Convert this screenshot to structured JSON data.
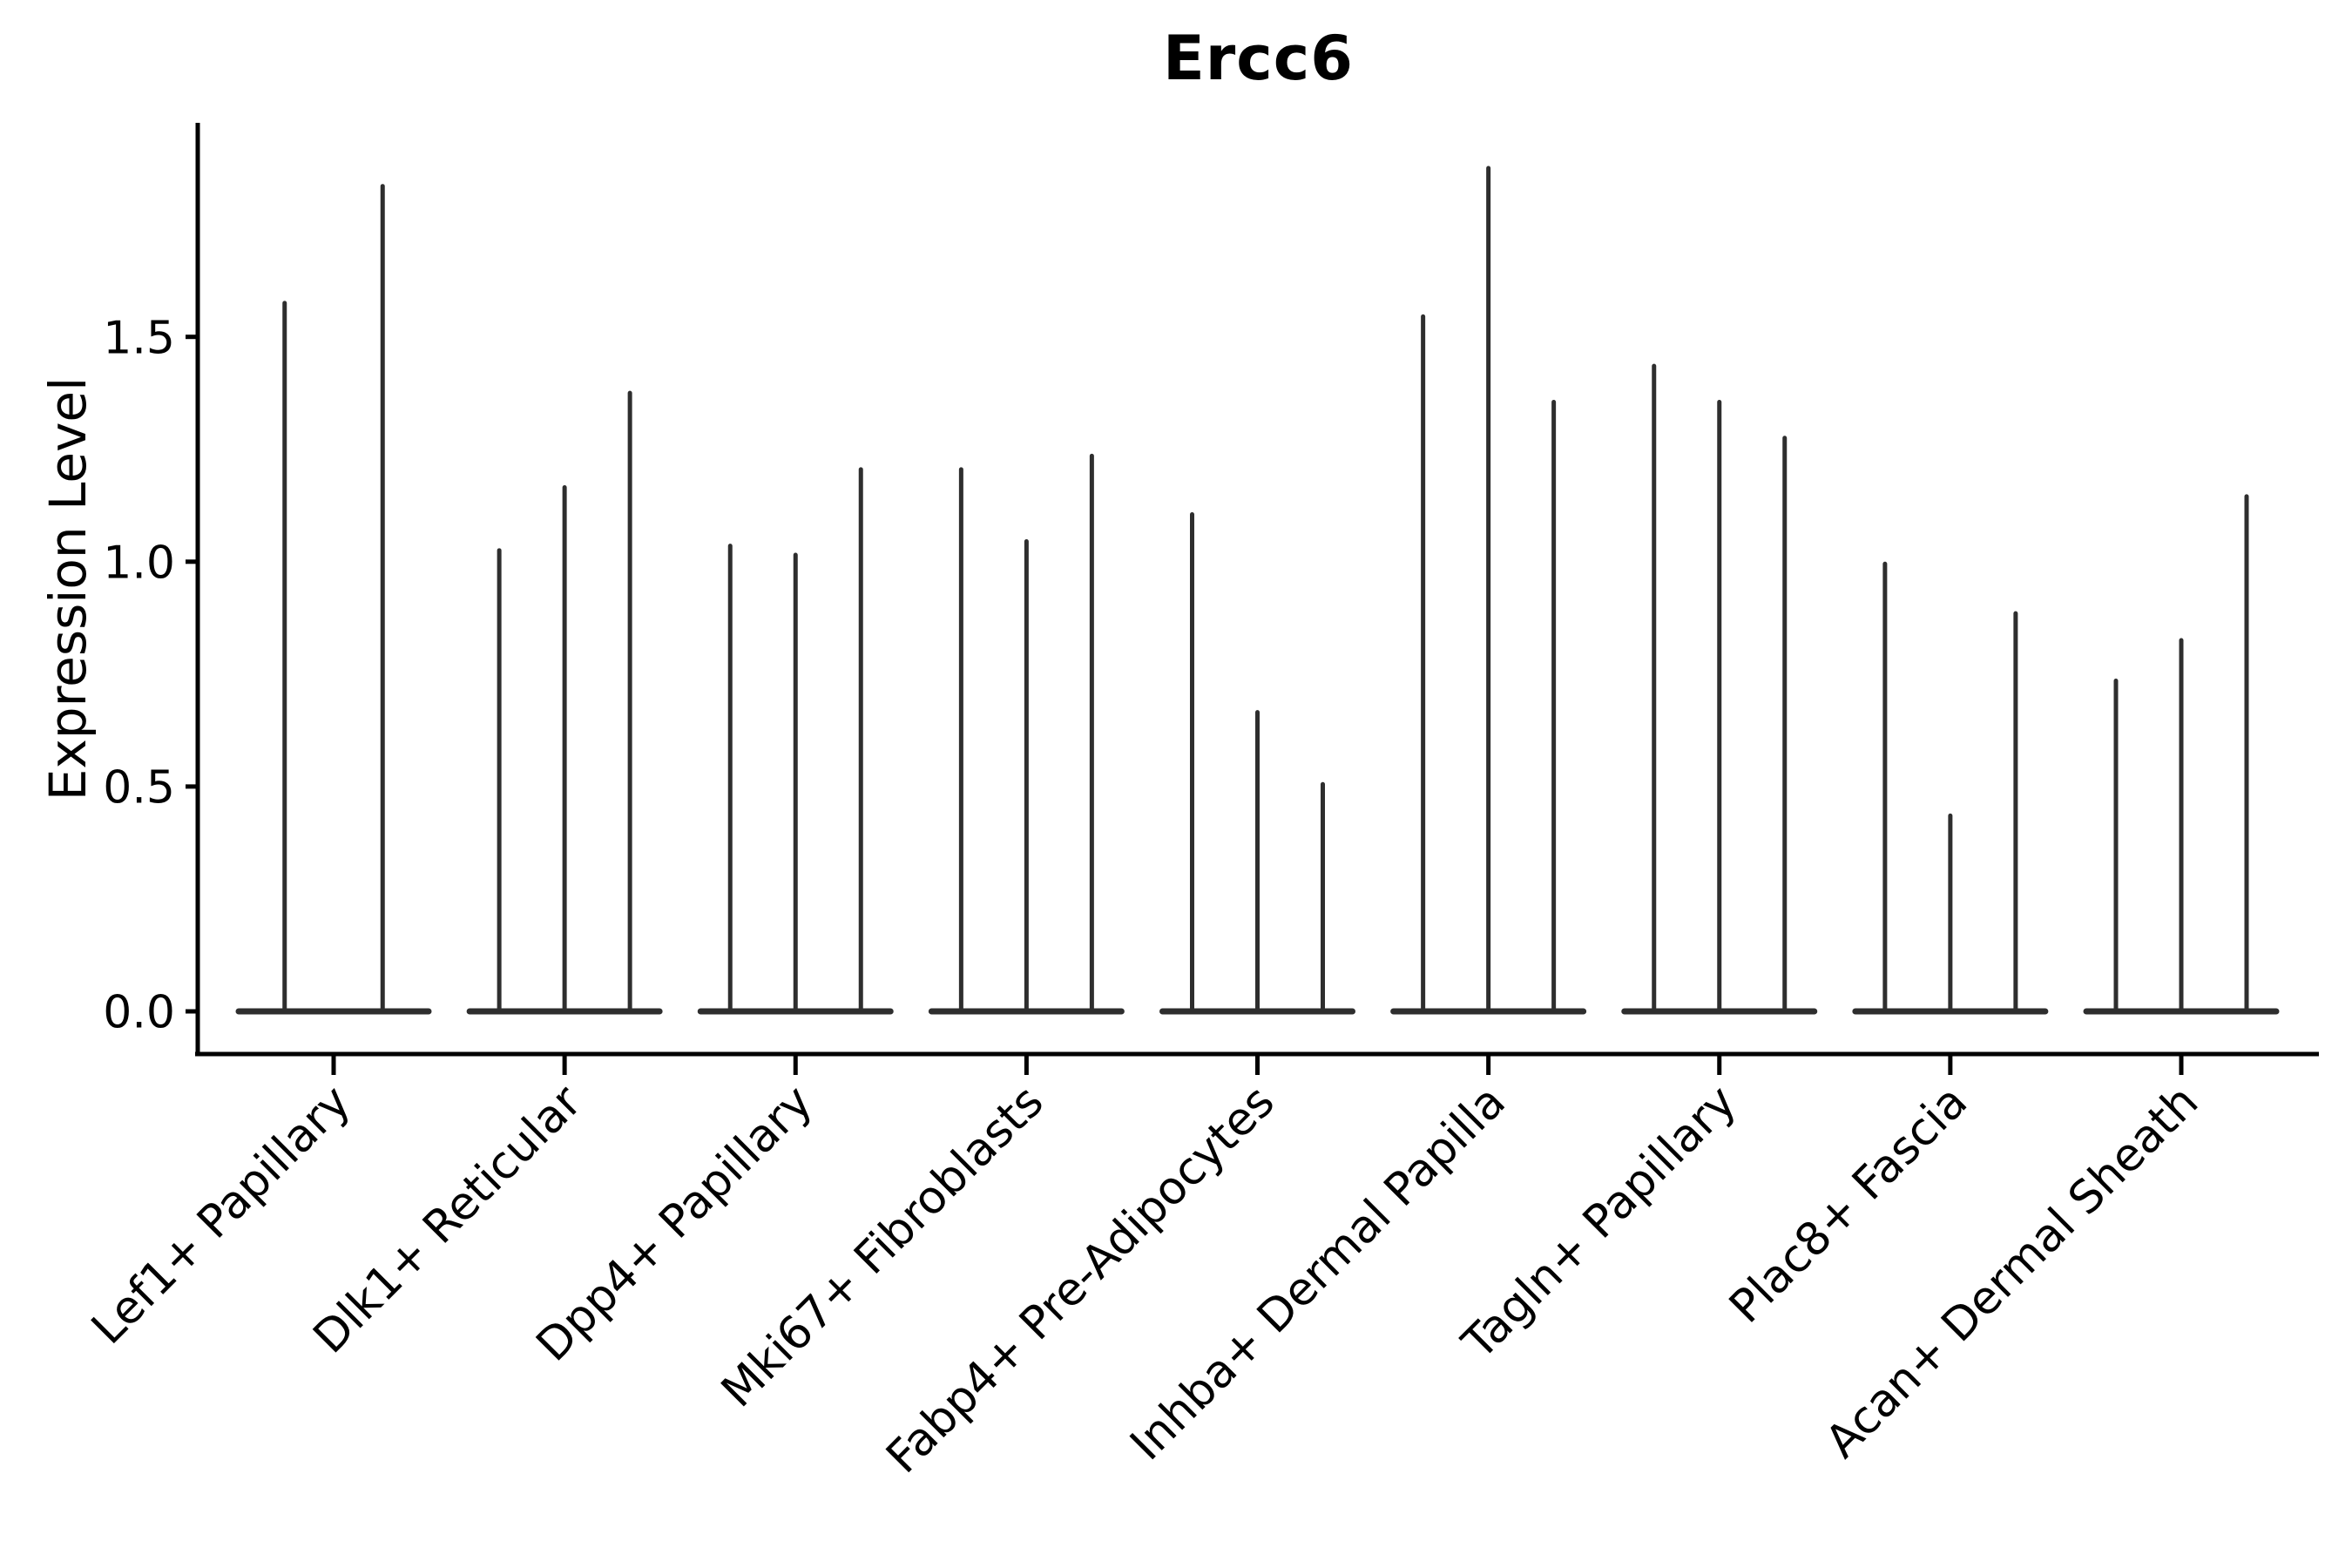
{
  "chart_data": {
    "type": "violin",
    "title": "Ercc6",
    "xlabel": "",
    "ylabel": "Expression Level",
    "ylim": [
      -0.095,
      1.975
    ],
    "ytick_values": [
      0.0,
      0.5,
      1.0,
      1.5
    ],
    "ytick_labels": [
      "0.0",
      "0.5",
      "1.0",
      "1.5"
    ],
    "grid": false,
    "legend_position": "none",
    "categories": [
      "Lef1+ Papillary",
      "Dlk1+ Reticular",
      "Dpp4+ Papillary",
      "Mki67+ Fibroblasts",
      "Fabp4+ Pre-Adipocytes",
      "Inhba+ Dermal Papilla",
      "Tagln+ Papillary",
      "Plac8+ Fascia",
      "Acan+ Dermal Sheath"
    ],
    "series": [
      {
        "category": "Lef1+ Papillary",
        "violin_peaks": [
          1.58,
          1.84
        ]
      },
      {
        "category": "Dlk1+ Reticular",
        "violin_peaks": [
          1.03,
          1.17,
          1.38
        ]
      },
      {
        "category": "Dpp4+ Papillary",
        "violin_peaks": [
          1.04,
          1.02,
          1.21
        ]
      },
      {
        "category": "Mki67+ Fibroblasts",
        "violin_peaks": [
          1.21,
          1.05,
          1.24
        ]
      },
      {
        "category": "Fabp4+ Pre-Adipocytes",
        "violin_peaks": [
          1.11,
          0.67,
          0.51
        ]
      },
      {
        "category": "Inhba+ Dermal Papilla",
        "violin_peaks": [
          1.55,
          1.88,
          1.36
        ]
      },
      {
        "category": "Tagln+ Papillary",
        "violin_peaks": [
          1.44,
          1.36,
          1.28
        ]
      },
      {
        "category": "Plac8+ Fascia",
        "violin_peaks": [
          1.0,
          0.44,
          0.89
        ]
      },
      {
        "category": "Acan+ Dermal Sheath",
        "violin_peaks": [
          0.74,
          0.83,
          1.15
        ]
      }
    ],
    "violin_shape_note": "each violin is a flat wide base at expression 0 with a thin vertical spike up to its peak value",
    "colors": {
      "violin_fill": "#2e2e2e",
      "axis": "#000000",
      "text": "#000000",
      "background": "#ffffff"
    }
  }
}
